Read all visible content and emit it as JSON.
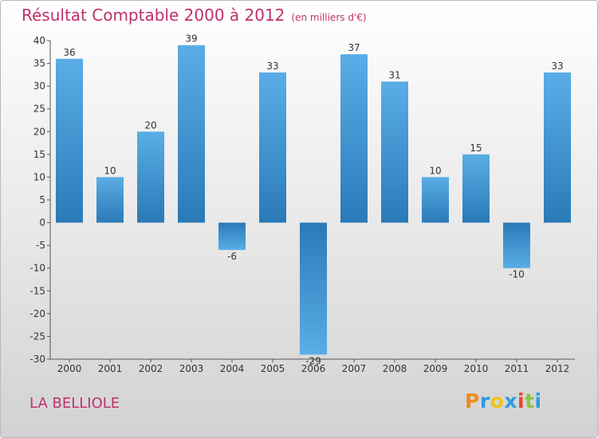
{
  "header": {
    "title": "Résultat Comptable 2000 à 2012",
    "subtitle": "(en milliers d'€)"
  },
  "footer": {
    "place": "LA BELLIOLE",
    "logo": {
      "letters": [
        "P",
        "r",
        "o",
        "x",
        "i",
        "t",
        "i"
      ],
      "colors": [
        "#f08a1c",
        "#2e9be0",
        "#f0c419",
        "#2e9be0",
        "#e8432e",
        "#8cc63f",
        "#2e9be0"
      ]
    }
  },
  "chart_data": {
    "type": "bar",
    "categories": [
      "2000",
      "2001",
      "2002",
      "2003",
      "2004",
      "2005",
      "2006",
      "2007",
      "2008",
      "2009",
      "2010",
      "2011",
      "2012"
    ],
    "values": [
      36,
      10,
      20,
      39,
      -6,
      33,
      -29,
      37,
      31,
      10,
      15,
      -10,
      33
    ],
    "value_labels": [
      "36",
      "10",
      "20",
      "39",
      "-6",
      "33",
      "-29",
      "37",
      "31",
      "10",
      "15",
      "-10",
      "33"
    ],
    "title": "Résultat Comptable 2000 à 2012",
    "subtitle": "(en milliers d'€)",
    "xlabel": "",
    "ylabel": "",
    "ylim": [
      -30,
      40
    ],
    "yticks": [
      40,
      35,
      30,
      25,
      20,
      15,
      10,
      5,
      0,
      -5,
      -10,
      -15,
      -20,
      -25,
      -30
    ],
    "grid": false,
    "colors": {
      "bar_light": "#5aade6",
      "bar_dark": "#2a7ab8",
      "axis": "#555555"
    }
  }
}
